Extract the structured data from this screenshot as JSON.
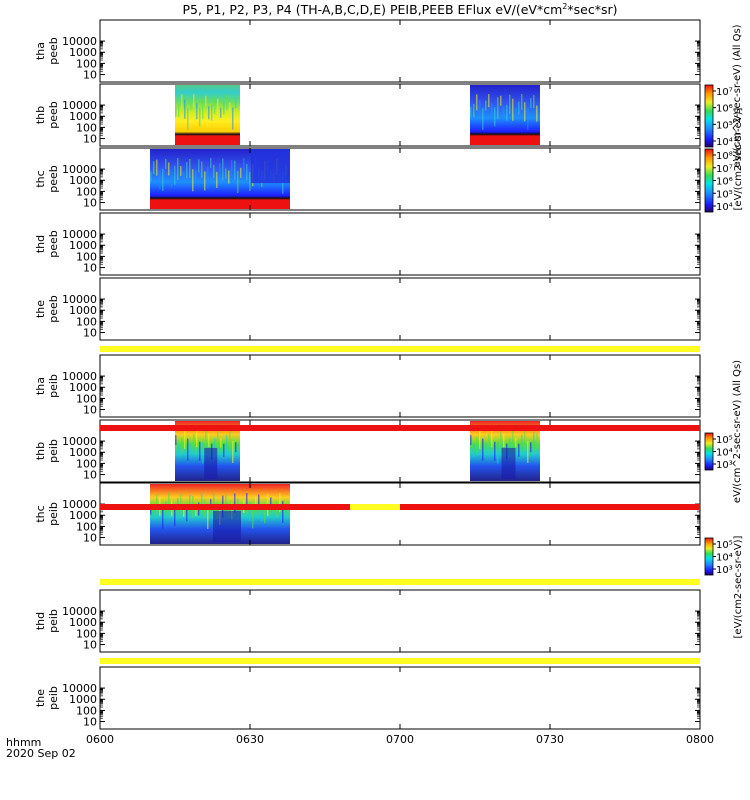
{
  "title_html_parts": [
    "P5, P1, P2, P3, P4 (TH-A,B,C,D,E) PEIB,PEEB EFlux eV/(eV*cm",
    "2",
    "*sec*sr)"
  ],
  "time_axis": {
    "label_top": "hhmm",
    "label_bottom": "2020 Sep 02",
    "ticks": [
      "0600",
      "0630",
      "0700",
      "0730",
      "0800"
    ],
    "range_min": [
      0,
      120
    ]
  },
  "y_ticks": [
    "10",
    "100",
    "1000",
    "10000"
  ],
  "colors": {
    "red": "#ee1111",
    "yellow": "#ffff22",
    "black": "#000000"
  },
  "panels": [
    {
      "probe": "tha",
      "product": "peeb",
      "label1": "tha",
      "label2": "peeb"
    },
    {
      "probe": "thb",
      "product": "peeb",
      "label1": "thb",
      "label2": "peeb"
    },
    {
      "probe": "thc",
      "product": "peeb",
      "label1": "thc",
      "label2": "peeb"
    },
    {
      "probe": "thd",
      "product": "peeb",
      "label1": "thd",
      "label2": "peeb"
    },
    {
      "probe": "the",
      "product": "peeb",
      "label1": "the",
      "label2": "peeb"
    },
    {
      "probe": "tha",
      "product": "peib",
      "label1": "tha",
      "label2": "peib"
    },
    {
      "probe": "thb",
      "product": "peib",
      "label1": "thb",
      "label2": "peib"
    },
    {
      "probe": "thc",
      "product": "peib",
      "label1": "thc",
      "label2": "peib"
    },
    {
      "probe": "thd",
      "product": "peib",
      "label1": "thd",
      "label2": "peib"
    },
    {
      "probe": "the",
      "product": "peib",
      "label1": "the",
      "label2": "peib"
    }
  ],
  "colorbars": [
    {
      "name": "electron",
      "title": "eV/(cm^2-sec-sr-eV) (All Qs)",
      "title2": "[eV/(cm2-sec-sr-eV)]",
      "ticks": [
        "10⁴",
        "10⁵",
        "10⁶",
        "10⁷"
      ]
    },
    {
      "name": "electron-c",
      "ticks": [
        "10⁴",
        "10⁵",
        "10⁶",
        "10⁷",
        "10⁸"
      ]
    },
    {
      "name": "ion",
      "title": "eV/(cm^2-sec-sr-eV) (All Qs)",
      "ticks": [
        "10³",
        "10⁴",
        "10⁵"
      ]
    },
    {
      "name": "ion-c",
      "title2": "[eV/(cm2-sec-sr-eV)]",
      "ticks": [
        "10³",
        "10⁴",
        "10⁵"
      ]
    }
  ],
  "chart_data": {
    "type": "heatmap",
    "title": "P5, P1, P2, P3, P4 (TH-A,B,C,D,E) PEIB,PEEB EFlux eV/(eV*cm2*sec*sr)",
    "xlabel": "hhmm",
    "x_ticks": [
      "0600",
      "0630",
      "0700",
      "0730",
      "0800"
    ],
    "y_ticks": [
      "10",
      "100",
      "1000",
      "10000"
    ],
    "y_scale": "log",
    "panels": [
      {
        "name": "tha peeb",
        "data_intervals_min": []
      },
      {
        "name": "thb peeb",
        "data_intervals_min": [
          [
            15,
            28
          ],
          [
            74,
            88
          ]
        ]
      },
      {
        "name": "thc peeb",
        "data_intervals_min": [
          [
            10,
            38
          ]
        ]
      },
      {
        "name": "thd peeb",
        "data_intervals_min": []
      },
      {
        "name": "the peeb",
        "data_intervals_min": []
      },
      {
        "name": "tha peib",
        "data_intervals_min": []
      },
      {
        "name": "thb peib",
        "data_intervals_min": [
          [
            15,
            28
          ],
          [
            74,
            88
          ]
        ]
      },
      {
        "name": "thc peib",
        "data_intervals_min": [
          [
            10,
            38
          ]
        ]
      },
      {
        "name": "thd peib",
        "data_intervals_min": []
      },
      {
        "name": "the peib",
        "data_intervals_min": []
      }
    ],
    "status_bars": [
      {
        "below_panel": "the peeb",
        "segments": [
          {
            "range_min": [
              0,
              120
            ],
            "color": "yellow"
          }
        ]
      },
      {
        "below_panel": "tha peib",
        "segments": [
          {
            "range_min": [
              0,
              120
            ],
            "color": "red"
          }
        ]
      },
      {
        "below_panel": "thb peib",
        "segments": [
          {
            "range_min": [
              0,
              50
            ],
            "color": "red"
          },
          {
            "range_min": [
              50,
              60
            ],
            "color": "yellow"
          },
          {
            "range_min": [
              60,
              120
            ],
            "color": "red"
          }
        ]
      },
      {
        "below_panel": "thc peib",
        "segments": [
          {
            "range_min": [
              0,
              120
            ],
            "color": "yellow"
          }
        ]
      },
      {
        "below_panel": "thd peib",
        "segments": [
          {
            "range_min": [
              0,
              120
            ],
            "color": "yellow"
          }
        ]
      }
    ]
  }
}
